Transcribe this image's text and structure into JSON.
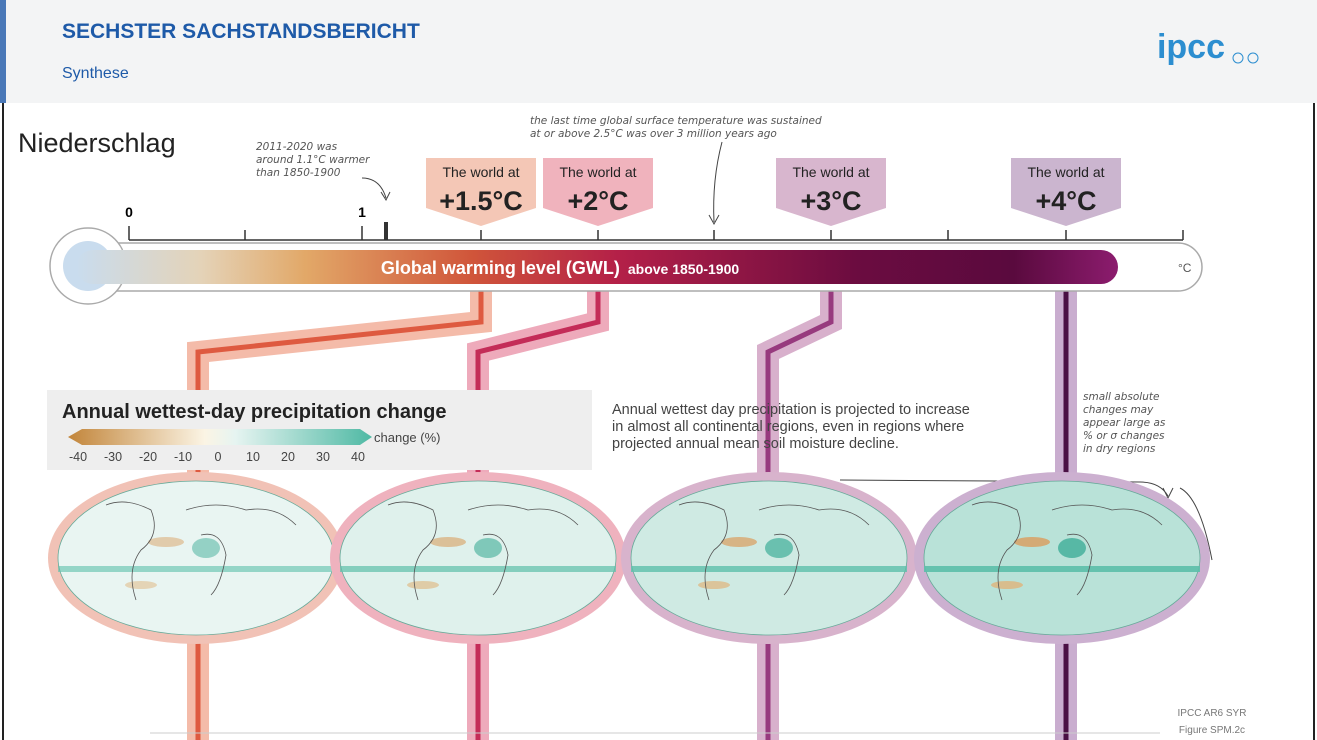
{
  "header": {
    "title": "SECHSTER SACHSTANDSBERICHT",
    "subtitle": "Synthese",
    "logo": "ipcc"
  },
  "heading": "Niederschlag",
  "scale": {
    "labels": [
      "0",
      "1"
    ],
    "note_recent": [
      "2011-2020 was",
      "around 1.1°C warmer",
      "than 1850-1900"
    ],
    "note_past": [
      "the last time global surface temperature was sustained",
      "at or above 2.5°C was over 3 million years ago"
    ]
  },
  "worlds": [
    {
      "prefix": "The world at",
      "level": "+1.5°C"
    },
    {
      "prefix": "The world at",
      "level": "+2°C"
    },
    {
      "prefix": "The world at",
      "level": "+3°C"
    },
    {
      "prefix": "The world at",
      "level": "+4°C"
    }
  ],
  "gwl_bar": {
    "label": "Global warming level (GWL)",
    "sublabel": "above 1850-1900",
    "unit": "°C"
  },
  "legend": {
    "title": "Annual wettest-day precipitation change",
    "unit": "change (%)",
    "ticks": [
      "-40",
      "-30",
      "-20",
      "-10",
      "0",
      "10",
      "20",
      "30",
      "40"
    ]
  },
  "description": [
    "Annual wettest day precipitation is projected to increase",
    "in almost all continental regions, even in regions where",
    "projected annual mean soil moisture decline."
  ],
  "note_dry": [
    "small absolute",
    "changes may",
    "appear large as",
    "% or σ changes",
    "in dry regions"
  ],
  "source": [
    "IPCC AR6 SYR",
    "Figure SPM.2c"
  ]
}
